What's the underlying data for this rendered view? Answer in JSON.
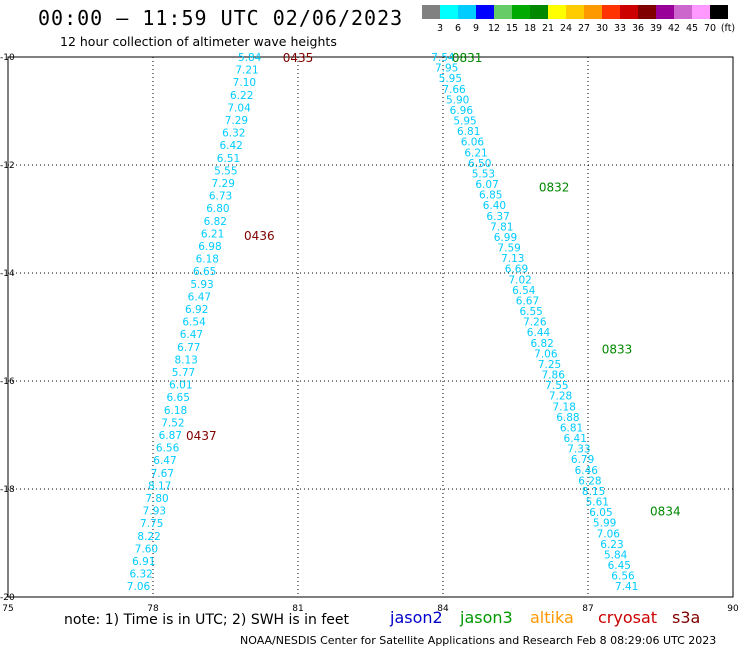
{
  "header": {
    "title": "00:00 — 11:59 UTC 02/06/2023",
    "subtitle": "12 hour collection of altimeter wave heights"
  },
  "color_scale": {
    "swatches": [
      "#808080",
      "#00ffff",
      "#00ccff",
      "#0000ff",
      "#66cc66",
      "#00aa00",
      "#008800",
      "#ffff00",
      "#ffcc00",
      "#ff9900",
      "#ff3300",
      "#cc0000",
      "#800000",
      "#990099",
      "#cc66cc",
      "#ff99ff",
      "#000000"
    ],
    "labels": [
      "3",
      "6",
      "9",
      "12",
      "15",
      "18",
      "21",
      "24",
      "27",
      "30",
      "33",
      "36",
      "39",
      "42",
      "45",
      "70",
      "(ft)"
    ]
  },
  "chart_data": {
    "type": "scatter",
    "x_ticks": [
      "75",
      "78",
      "81",
      "84",
      "87",
      "90"
    ],
    "y_ticks": [
      "-10",
      "-12",
      "-14",
      "-16",
      "-18",
      "-20"
    ],
    "xlim": [
      75,
      90
    ],
    "ylim": [
      -20,
      -10
    ],
    "grid": true,
    "value_color": "#00ccff",
    "tracks": [
      {
        "start": [
          80.0,
          -10.0
        ],
        "end": [
          77.7,
          -19.8
        ],
        "values": [
          "5.84",
          "7.21",
          "7.10",
          "6.22",
          "7.04",
          "7.29",
          "6.32",
          "6.42",
          "6.51",
          "5.55",
          "7.29",
          "6.73",
          "6.80",
          "6.82",
          "6.21",
          "6.98",
          "6.18",
          "6.65",
          "5.93",
          "6.47",
          "6.92",
          "6.54",
          "6.47",
          "6.77",
          "8.13",
          "5.77",
          "6.01",
          "6.65",
          "6.18",
          "7.52",
          "6.87",
          "6.56",
          "6.47",
          "7.67",
          "8.17",
          "7.80",
          "7.93",
          "7.75",
          "8.22",
          "7.60",
          "6.91",
          "6.32",
          "7.06"
        ],
        "times": [
          {
            "label": "0435",
            "lat": -10.0,
            "lon": 81.0,
            "color": "#800000"
          },
          {
            "label": "0436",
            "lat": -13.3,
            "lon": 80.2,
            "color": "#800000"
          },
          {
            "label": "0437",
            "lat": -17.0,
            "lon": 79.0,
            "color": "#800000"
          }
        ]
      },
      {
        "start": [
          84.0,
          -10.0
        ],
        "end": [
          87.8,
          -19.8
        ],
        "values": [
          "7.54",
          "7.95",
          "5.95",
          "7.66",
          "5.90",
          "6.96",
          "5.95",
          "6.81",
          "6.06",
          "6.21",
          "6.50",
          "5.53",
          "6.07",
          "6.85",
          "6.40",
          "6.37",
          "7.81",
          "6.99",
          "7.59",
          "7.13",
          "6.69",
          "7.02",
          "6.54",
          "6.67",
          "6.55",
          "7.26",
          "6.44",
          "6.82",
          "7.06",
          "7.25",
          "7.86",
          "7.55",
          "7.28",
          "7.18",
          "6.88",
          "6.81",
          "6.41",
          "7.33",
          "6.79",
          "6.46",
          "6.28",
          "8.15",
          "5.61",
          "6.05",
          "5.99",
          "7.06",
          "6.23",
          "5.84",
          "6.45",
          "6.56",
          "7.41"
        ],
        "times": [
          {
            "label": "0831",
            "lat": -10.0,
            "lon": 84.5,
            "color": "#008800"
          },
          {
            "label": "0832",
            "lat": -12.4,
            "lon": 86.3,
            "color": "#008800"
          },
          {
            "label": "0833",
            "lat": -15.4,
            "lon": 87.6,
            "color": "#008800"
          },
          {
            "label": "0834",
            "lat": -18.4,
            "lon": 88.6,
            "color": "#008800"
          }
        ]
      }
    ]
  },
  "footer": {
    "note": "note:  1) Time is in UTC; 2) SWH is in feet",
    "satellites": [
      {
        "name": "jason2",
        "color": "#0000cc"
      },
      {
        "name": "jason3",
        "color": "#009900"
      },
      {
        "name": "altika",
        "color": "#ff9900"
      },
      {
        "name": "cryosat",
        "color": "#cc0000"
      },
      {
        "name": "s3a",
        "color": "#800000"
      }
    ],
    "credit": "NOAA/NESDIS Center for Satellite Applications and Research    Feb  8 08:29:06 UTC 2023"
  }
}
